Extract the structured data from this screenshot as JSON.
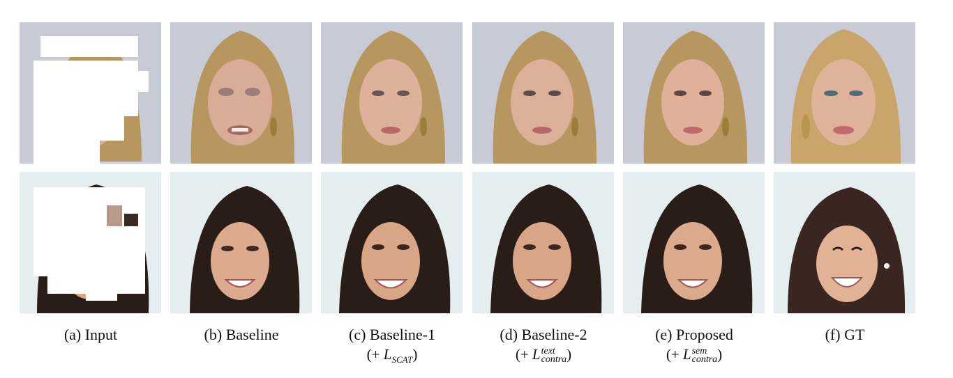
{
  "figure": {
    "captions": [
      {
        "line1": "(a) Input",
        "line2": ""
      },
      {
        "line1": "(b) Baseline",
        "line2": ""
      },
      {
        "line1": "(c) Baseline-1",
        "line2_prefix": "(+ ",
        "line2_var": "L",
        "line2_sub": "SCAT",
        "line2_sup": "",
        "line2_suffix": ")"
      },
      {
        "line1": "(d) Baseline-2",
        "line2_prefix": "(+ ",
        "line2_var": "L",
        "line2_sub": "contra",
        "line2_sup": "text",
        "line2_suffix": ")"
      },
      {
        "line1": "(e) Proposed",
        "line2_prefix": "(+ ",
        "line2_var": "L",
        "line2_sub": "contra",
        "line2_sup": "sem",
        "line2_suffix": ")"
      },
      {
        "line1": "(f) GT",
        "line2": ""
      }
    ]
  },
  "colors": {
    "row1_background": "#c8cbd6",
    "row1_hair": "#b8965f",
    "row1_skin": "#dcae93",
    "row2_background": "#e4eeee",
    "row2_hair": "#2a1d18",
    "row2_skin": "#d9a587",
    "mask": "#ffffff",
    "lips": "#b9666a"
  }
}
